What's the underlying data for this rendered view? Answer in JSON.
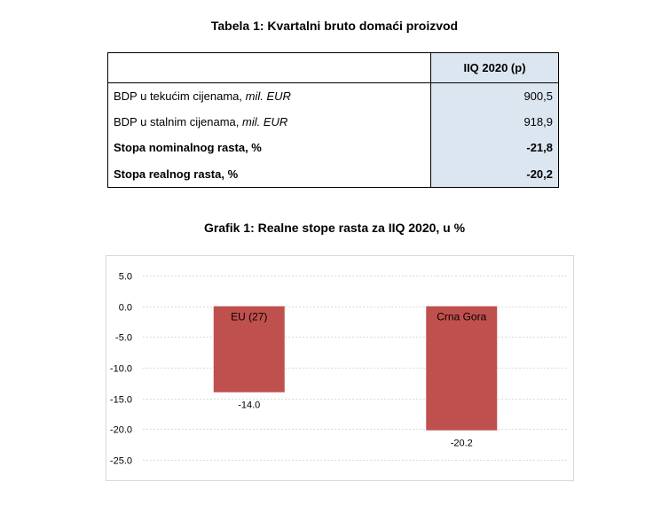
{
  "table": {
    "title": "Tabela 1: Kvartalni bruto domaći proizvod",
    "column_header": "IIQ 2020 (p)",
    "rows": [
      {
        "label_main": "BDP u tekućim cijenama, ",
        "label_unit": "mil. EUR",
        "value": "900,5"
      },
      {
        "label_main": "BDP u stalnim cijenama, ",
        "label_unit": "mil. EUR",
        "value": "918,9"
      },
      {
        "label_main": "Stopa nominalnog rasta, %",
        "label_unit": "",
        "value": "-21,8"
      },
      {
        "label_main": "Stopa realnog rasta, %",
        "label_unit": "",
        "value": "-20,2"
      }
    ]
  },
  "chart_title": "Grafik 1: Realne stope rasta za IIQ 2020, u %",
  "chart_data": {
    "type": "bar",
    "title": "Grafik 1: Realne stope rasta za IIQ 2020, u %",
    "categories": [
      "EU (27)",
      "Crna Gora"
    ],
    "values": [
      -14.0,
      -20.2
    ],
    "value_labels": [
      "-14.0",
      "-20.2"
    ],
    "ylim": [
      -25,
      5
    ],
    "yticks": [
      5,
      0,
      -5,
      -10,
      -15,
      -20,
      -25
    ],
    "ytick_labels": [
      "5.0",
      "0.0",
      "-5.0",
      "-10.0",
      "-15.0",
      "-20.0",
      "-25.0"
    ],
    "grid": true,
    "xlabel": "",
    "ylabel": "",
    "bar_color": "#c0504d",
    "grid_color": "#d9d9d9"
  }
}
